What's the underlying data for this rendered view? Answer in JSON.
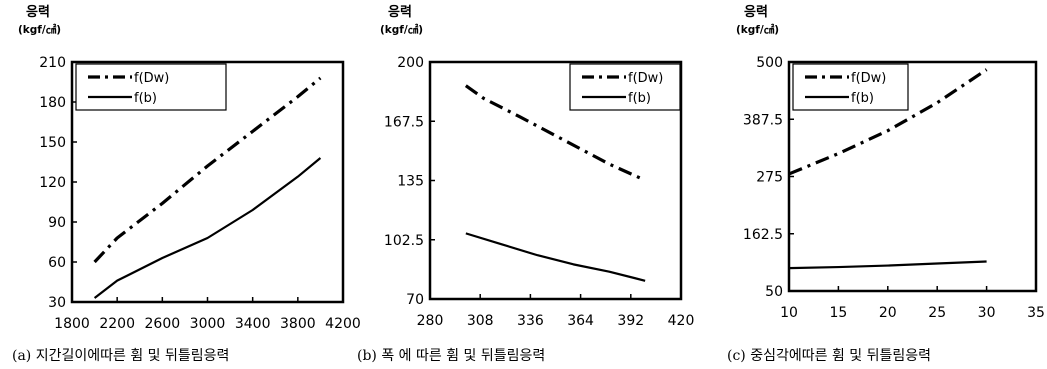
{
  "chart_data": [
    {
      "type": "line",
      "caption": "(a) 지간길이에따른 휨 및 뒤틀림응력",
      "ylabel": "응력",
      "yunit": "(kgf/㎠)",
      "xlabel": "",
      "xlim": [
        1800,
        4200
      ],
      "ylim": [
        30,
        210
      ],
      "xticks": [
        "1800",
        "2200",
        "2600",
        "3000",
        "3400",
        "3800",
        "4200"
      ],
      "yticks": [
        "30",
        "60",
        "90",
        "120",
        "150",
        "180",
        "210"
      ],
      "legend": "top-left",
      "series": [
        {
          "name": "f(Dw)",
          "style": "dash-dot",
          "color": "#000000",
          "x": [
            2000,
            2200,
            2600,
            3000,
            3400,
            3800,
            4000
          ],
          "y": [
            60,
            78,
            104,
            132,
            158,
            184,
            198
          ]
        },
        {
          "name": "f(b)",
          "style": "solid",
          "color": "#000000",
          "x": [
            2000,
            2200,
            2600,
            3000,
            3400,
            3800,
            4000
          ],
          "y": [
            33,
            46,
            63,
            78,
            99,
            124,
            138
          ]
        }
      ]
    },
    {
      "type": "line",
      "caption": "(b) 폭 에 따른 휨 및 뒤틀림응력",
      "ylabel": "응력",
      "yunit": "(kgf/㎠)",
      "xlabel": "",
      "xlim": [
        280,
        420
      ],
      "ylim": [
        70,
        200
      ],
      "xticks": [
        "280",
        "308",
        "336",
        "364",
        "392",
        "420"
      ],
      "yticks": [
        "70",
        "102.5",
        "135",
        "167.5",
        "200"
      ],
      "legend": "top-right",
      "series": [
        {
          "name": "f(Dw)",
          "style": "dash-dot",
          "color": "#000000",
          "x": [
            300,
            310,
            330,
            355,
            380,
            398
          ],
          "y": [
            187,
            180,
            170,
            157,
            144,
            136
          ]
        },
        {
          "name": "f(b)",
          "style": "solid",
          "color": "#000000",
          "x": [
            300,
            320,
            340,
            360,
            380,
            400
          ],
          "y": [
            106,
            100,
            94,
            89,
            85,
            80
          ]
        }
      ]
    },
    {
      "type": "line",
      "caption": "(c) 중심각에따른 휨 및 뒤틀림응력",
      "ylabel": "응력",
      "yunit": "(kgf/㎠)",
      "xlabel": "",
      "xlim": [
        10,
        35
      ],
      "ylim": [
        50,
        500
      ],
      "xticks": [
        "10",
        "15",
        "20",
        "25",
        "30",
        "35"
      ],
      "yticks": [
        "50",
        "162.5",
        "275",
        "387.5",
        "500"
      ],
      "legend": "top-left",
      "series": [
        {
          "name": "f(Dw)",
          "style": "dash-dot",
          "color": "#000000",
          "x": [
            10,
            15,
            20,
            25,
            30
          ],
          "y": [
            280,
            320,
            365,
            420,
            485
          ]
        },
        {
          "name": "f(b)",
          "style": "solid",
          "color": "#000000",
          "x": [
            10,
            15,
            20,
            25,
            30
          ],
          "y": [
            95,
            97,
            100,
            104,
            108
          ]
        }
      ]
    }
  ]
}
